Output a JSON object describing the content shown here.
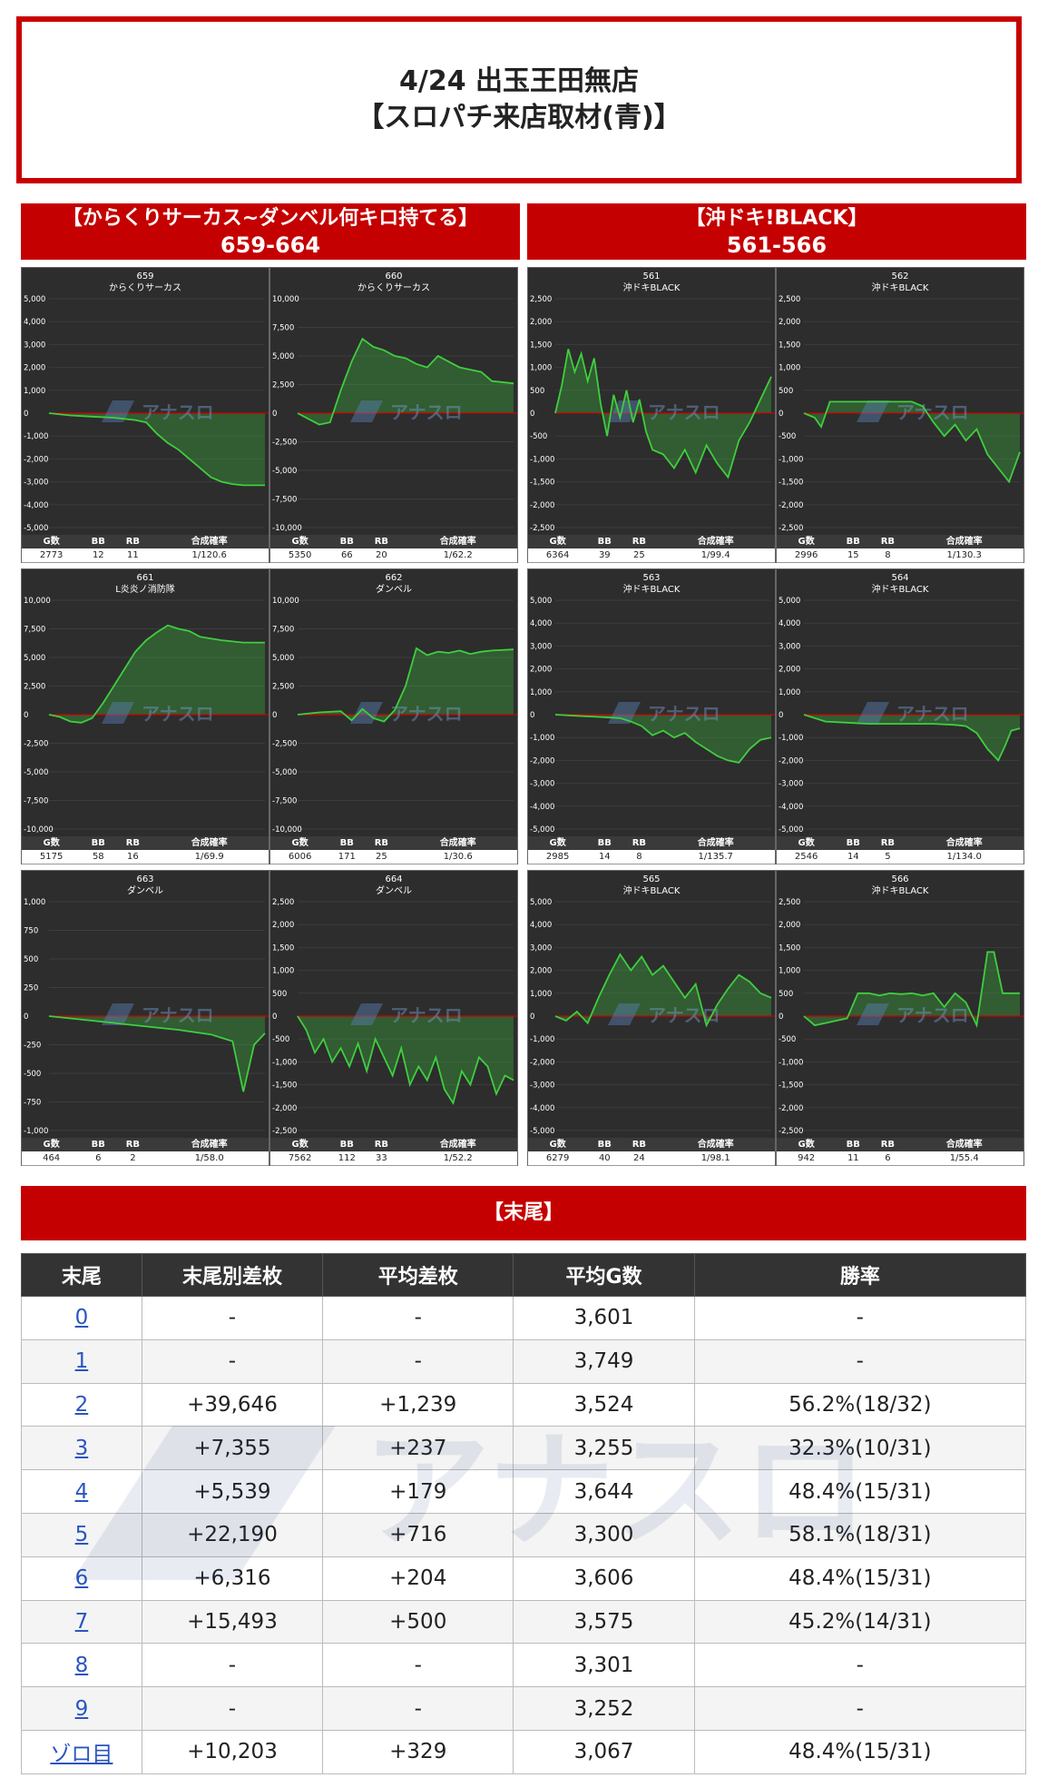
{
  "header": {
    "line1": "4/24 出玉王田無店",
    "line2": "【スロパチ来店取材(青)】"
  },
  "groups": [
    {
      "title": "【からくりサーカス~ダンベル何キロ持てる】",
      "range": "659-664"
    },
    {
      "title": "【沖ドキ!BLACK】",
      "range": "561-566"
    }
  ],
  "stat_labels": {
    "games": "G数",
    "bb": "BB",
    "rb": "RB",
    "rate": "合成確率"
  },
  "watermark_text": "アナスロ",
  "colors": {
    "red": "#c50000",
    "chart_bg": "#2d2d2d",
    "line": "#3fce3f",
    "zero": "#d00000"
  },
  "chart_data": [
    {
      "type": "line",
      "number": "659",
      "name": "からくりサーカス",
      "ylim": [
        -5000,
        5000
      ],
      "yticks": [
        "5,000",
        "4,000",
        "3,000",
        "2,000",
        "1,000",
        "0",
        "-1,000",
        "-2,000",
        "-3,000",
        "-4,000",
        "-5,000"
      ],
      "x": [
        0,
        0.1,
        0.2,
        0.3,
        0.35,
        0.4,
        0.45,
        0.5,
        0.55,
        0.6,
        0.65,
        0.7,
        0.75,
        0.8,
        0.85,
        0.9,
        0.95,
        1.0
      ],
      "values": [
        0,
        -100,
        -150,
        -200,
        -250,
        -300,
        -400,
        -900,
        -1300,
        -1600,
        -2000,
        -2400,
        -2800,
        -3000,
        -3100,
        -3150,
        -3150,
        -3150
      ],
      "stats": {
        "games": "2773",
        "bb": "12",
        "rb": "11",
        "rate": "1/120.6"
      }
    },
    {
      "type": "line",
      "number": "660",
      "name": "からくりサーカス",
      "ylim": [
        -10000,
        10000
      ],
      "yticks": [
        "10,000",
        "7,500",
        "5,000",
        "2,500",
        "0",
        "-2,500",
        "-5,000",
        "-7,500",
        "-10,000"
      ],
      "x": [
        0,
        0.05,
        0.1,
        0.15,
        0.2,
        0.25,
        0.3,
        0.35,
        0.4,
        0.45,
        0.5,
        0.55,
        0.6,
        0.65,
        0.7,
        0.75,
        0.8,
        0.85,
        0.9,
        1.0
      ],
      "values": [
        0,
        -500,
        -1000,
        -800,
        2000,
        4500,
        6500,
        5800,
        5500,
        5000,
        4800,
        4300,
        4000,
        5000,
        4500,
        4000,
        3800,
        3600,
        2800,
        2600
      ],
      "stats": {
        "games": "5350",
        "bb": "66",
        "rb": "20",
        "rate": "1/62.2"
      }
    },
    {
      "type": "line",
      "number": "561",
      "name": "沖ドキBLACK",
      "ylim": [
        -2500,
        2500
      ],
      "yticks": [
        "2,500",
        "2,000",
        "1,500",
        "1,000",
        "500",
        "0",
        "-500",
        "-1,000",
        "-1,500",
        "-2,000",
        "-2,500"
      ],
      "x": [
        0,
        0.03,
        0.06,
        0.09,
        0.12,
        0.15,
        0.18,
        0.21,
        0.24,
        0.27,
        0.3,
        0.33,
        0.36,
        0.39,
        0.42,
        0.45,
        0.5,
        0.55,
        0.6,
        0.65,
        0.7,
        0.75,
        0.8,
        0.85,
        0.9,
        0.95,
        1.0
      ],
      "values": [
        0,
        600,
        1400,
        900,
        1300,
        700,
        1200,
        200,
        -500,
        400,
        -100,
        500,
        -200,
        300,
        -400,
        -800,
        -900,
        -1200,
        -800,
        -1300,
        -700,
        -1100,
        -1400,
        -600,
        -200,
        300,
        800
      ],
      "stats": {
        "games": "6364",
        "bb": "39",
        "rb": "25",
        "rate": "1/99.4"
      }
    },
    {
      "type": "line",
      "number": "562",
      "name": "沖ドキBLACK",
      "ylim": [
        -2500,
        2500
      ],
      "yticks": [
        "2,500",
        "2,000",
        "1,500",
        "1,000",
        "500",
        "0",
        "-500",
        "-1,000",
        "-1,500",
        "-2,000",
        "-2,500"
      ],
      "x": [
        0,
        0.05,
        0.08,
        0.12,
        0.2,
        0.3,
        0.4,
        0.5,
        0.55,
        0.6,
        0.65,
        0.7,
        0.75,
        0.8,
        0.85,
        0.9,
        0.95,
        1.0
      ],
      "values": [
        0,
        -100,
        -300,
        250,
        250,
        250,
        250,
        250,
        150,
        -200,
        -500,
        -250,
        -600,
        -350,
        -900,
        -1200,
        -1500,
        -850
      ],
      "stats": {
        "games": "2996",
        "bb": "15",
        "rb": "8",
        "rate": "1/130.3"
      }
    },
    {
      "type": "line",
      "number": "661",
      "name": "L炎炎ノ消防隊",
      "ylim": [
        -10000,
        10000
      ],
      "yticks": [
        "10,000",
        "7,500",
        "5,000",
        "2,500",
        "0",
        "-2,500",
        "-5,000",
        "-7,500",
        "-10,000"
      ],
      "x": [
        0,
        0.05,
        0.1,
        0.15,
        0.2,
        0.25,
        0.3,
        0.35,
        0.4,
        0.45,
        0.5,
        0.55,
        0.6,
        0.65,
        0.7,
        0.8,
        0.9,
        1.0
      ],
      "values": [
        0,
        -200,
        -600,
        -700,
        -300,
        1000,
        2500,
        4000,
        5500,
        6500,
        7200,
        7800,
        7500,
        7300,
        6800,
        6500,
        6300,
        6300
      ],
      "stats": {
        "games": "5175",
        "bb": "58",
        "rb": "16",
        "rate": "1/69.9"
      }
    },
    {
      "type": "line",
      "number": "662",
      "name": "ダンベル",
      "ylim": [
        -10000,
        10000
      ],
      "yticks": [
        "10,000",
        "7,500",
        "5,000",
        "2,500",
        "0",
        "-2,500",
        "-5,000",
        "-7,500",
        "-10,000"
      ],
      "x": [
        0,
        0.1,
        0.2,
        0.25,
        0.3,
        0.35,
        0.4,
        0.45,
        0.5,
        0.55,
        0.6,
        0.65,
        0.7,
        0.75,
        0.8,
        0.85,
        0.9,
        1.0
      ],
      "values": [
        0,
        200,
        300,
        -500,
        500,
        -300,
        -600,
        400,
        2500,
        5800,
        5200,
        5500,
        5400,
        5600,
        5300,
        5500,
        5600,
        5700
      ],
      "stats": {
        "games": "6006",
        "bb": "171",
        "rb": "25",
        "rate": "1/30.6"
      }
    },
    {
      "type": "line",
      "number": "563",
      "name": "沖ドキBLACK",
      "ylim": [
        -5000,
        5000
      ],
      "yticks": [
        "5,000",
        "4,000",
        "3,000",
        "2,000",
        "1,000",
        "0",
        "-1,000",
        "-2,000",
        "-3,000",
        "-4,000",
        "-5,000"
      ],
      "x": [
        0,
        0.1,
        0.2,
        0.3,
        0.35,
        0.4,
        0.45,
        0.5,
        0.55,
        0.6,
        0.65,
        0.7,
        0.75,
        0.8,
        0.85,
        0.9,
        0.95,
        1.0
      ],
      "values": [
        0,
        -50,
        -100,
        -150,
        -300,
        -500,
        -900,
        -700,
        -1000,
        -800,
        -1200,
        -1500,
        -1800,
        -2000,
        -2100,
        -1500,
        -1100,
        -1000
      ],
      "stats": {
        "games": "2985",
        "bb": "14",
        "rb": "8",
        "rate": "1/135.7"
      }
    },
    {
      "type": "line",
      "number": "564",
      "name": "沖ドキBLACK",
      "ylim": [
        -5000,
        5000
      ],
      "yticks": [
        "5,000",
        "4,000",
        "3,000",
        "2,000",
        "1,000",
        "0",
        "-1,000",
        "-2,000",
        "-3,000",
        "-4,000",
        "-5,000"
      ],
      "x": [
        0,
        0.1,
        0.2,
        0.3,
        0.4,
        0.5,
        0.6,
        0.7,
        0.75,
        0.8,
        0.85,
        0.9,
        0.93,
        0.96,
        1.0
      ],
      "values": [
        0,
        -300,
        -350,
        -400,
        -400,
        -400,
        -400,
        -450,
        -500,
        -800,
        -1500,
        -2000,
        -1400,
        -700,
        -600
      ],
      "stats": {
        "games": "2546",
        "bb": "14",
        "rb": "5",
        "rate": "1/134.0"
      }
    },
    {
      "type": "line",
      "number": "663",
      "name": "ダンベル",
      "ylim": [
        -1000,
        1000
      ],
      "yticks": [
        "1,000",
        "750",
        "500",
        "250",
        "0",
        "-250",
        "-500",
        "-750",
        "-1,000"
      ],
      "x": [
        0,
        0.2,
        0.4,
        0.6,
        0.75,
        0.85,
        0.9,
        0.95,
        1.0
      ],
      "values": [
        0,
        -40,
        -80,
        -120,
        -160,
        -220,
        -660,
        -250,
        -150
      ],
      "stats": {
        "games": "464",
        "bb": "6",
        "rb": "2",
        "rate": "1/58.0"
      }
    },
    {
      "type": "line",
      "number": "664",
      "name": "ダンベル",
      "ylim": [
        -2500,
        2500
      ],
      "yticks": [
        "2,500",
        "2,000",
        "1,500",
        "1,000",
        "500",
        "0",
        "-500",
        "-1,000",
        "-1,500",
        "-2,000",
        "-2,500"
      ],
      "x": [
        0,
        0.04,
        0.08,
        0.12,
        0.16,
        0.2,
        0.24,
        0.28,
        0.32,
        0.36,
        0.4,
        0.44,
        0.48,
        0.52,
        0.56,
        0.6,
        0.64,
        0.68,
        0.72,
        0.76,
        0.8,
        0.84,
        0.88,
        0.92,
        0.96,
        1.0
      ],
      "values": [
        0,
        -300,
        -800,
        -500,
        -1000,
        -700,
        -1100,
        -600,
        -1200,
        -500,
        -900,
        -1300,
        -700,
        -1500,
        -1100,
        -1400,
        -900,
        -1600,
        -1900,
        -1200,
        -1500,
        -900,
        -1100,
        -1700,
        -1300,
        -1400
      ],
      "stats": {
        "games": "7562",
        "bb": "112",
        "rb": "33",
        "rate": "1/52.2"
      }
    },
    {
      "type": "line",
      "number": "565",
      "name": "沖ドキBLACK",
      "ylim": [
        -5000,
        5000
      ],
      "yticks": [
        "5,000",
        "4,000",
        "3,000",
        "2,000",
        "1,000",
        "0",
        "-1,000",
        "-2,000",
        "-3,000",
        "-4,000",
        "-5,000"
      ],
      "x": [
        0,
        0.05,
        0.1,
        0.15,
        0.2,
        0.25,
        0.3,
        0.35,
        0.4,
        0.45,
        0.5,
        0.55,
        0.6,
        0.65,
        0.7,
        0.75,
        0.8,
        0.85,
        0.9,
        0.95,
        1.0
      ],
      "values": [
        0,
        -200,
        200,
        -300,
        800,
        1800,
        2700,
        2000,
        2600,
        1800,
        2200,
        1500,
        800,
        1400,
        -400,
        500,
        1200,
        1800,
        1500,
        1000,
        800
      ],
      "stats": {
        "games": "6279",
        "bb": "40",
        "rb": "24",
        "rate": "1/98.1"
      }
    },
    {
      "type": "line",
      "number": "566",
      "name": "沖ドキBLACK",
      "ylim": [
        -2500,
        2500
      ],
      "yticks": [
        "2,500",
        "2,000",
        "1,500",
        "1,000",
        "500",
        "0",
        "-500",
        "-1,000",
        "-1,500",
        "-2,000",
        "-2,500"
      ],
      "x": [
        0,
        0.05,
        0.1,
        0.15,
        0.2,
        0.25,
        0.3,
        0.35,
        0.4,
        0.45,
        0.5,
        0.55,
        0.6,
        0.65,
        0.7,
        0.75,
        0.8,
        0.85,
        0.88,
        0.92,
        0.95,
        1.0
      ],
      "values": [
        0,
        -200,
        -150,
        -100,
        -50,
        500,
        500,
        450,
        500,
        480,
        500,
        450,
        500,
        200,
        500,
        300,
        -200,
        1400,
        1400,
        500,
        500,
        500
      ],
      "stats": {
        "games": "942",
        "bb": "11",
        "rb": "6",
        "rate": "1/55.4"
      }
    }
  ],
  "summary": {
    "title": "【末尾】",
    "columns": [
      "末尾",
      "末尾別差枚",
      "平均差枚",
      "平均G数",
      "勝率"
    ],
    "rows": [
      [
        "0",
        "-",
        "-",
        "3,601",
        "-"
      ],
      [
        "1",
        "-",
        "-",
        "3,749",
        "-"
      ],
      [
        "2",
        "+39,646",
        "+1,239",
        "3,524",
        "56.2%(18/32)"
      ],
      [
        "3",
        "+7,355",
        "+237",
        "3,255",
        "32.3%(10/31)"
      ],
      [
        "4",
        "+5,539",
        "+179",
        "3,644",
        "48.4%(15/31)"
      ],
      [
        "5",
        "+22,190",
        "+716",
        "3,300",
        "58.1%(18/31)"
      ],
      [
        "6",
        "+6,316",
        "+204",
        "3,606",
        "48.4%(15/31)"
      ],
      [
        "7",
        "+15,493",
        "+500",
        "3,575",
        "45.2%(14/31)"
      ],
      [
        "8",
        "-",
        "-",
        "3,301",
        "-"
      ],
      [
        "9",
        "-",
        "-",
        "3,252",
        "-"
      ],
      [
        "ゾロ目",
        "+10,203",
        "+329",
        "3,067",
        "48.4%(15/31)"
      ]
    ]
  }
}
